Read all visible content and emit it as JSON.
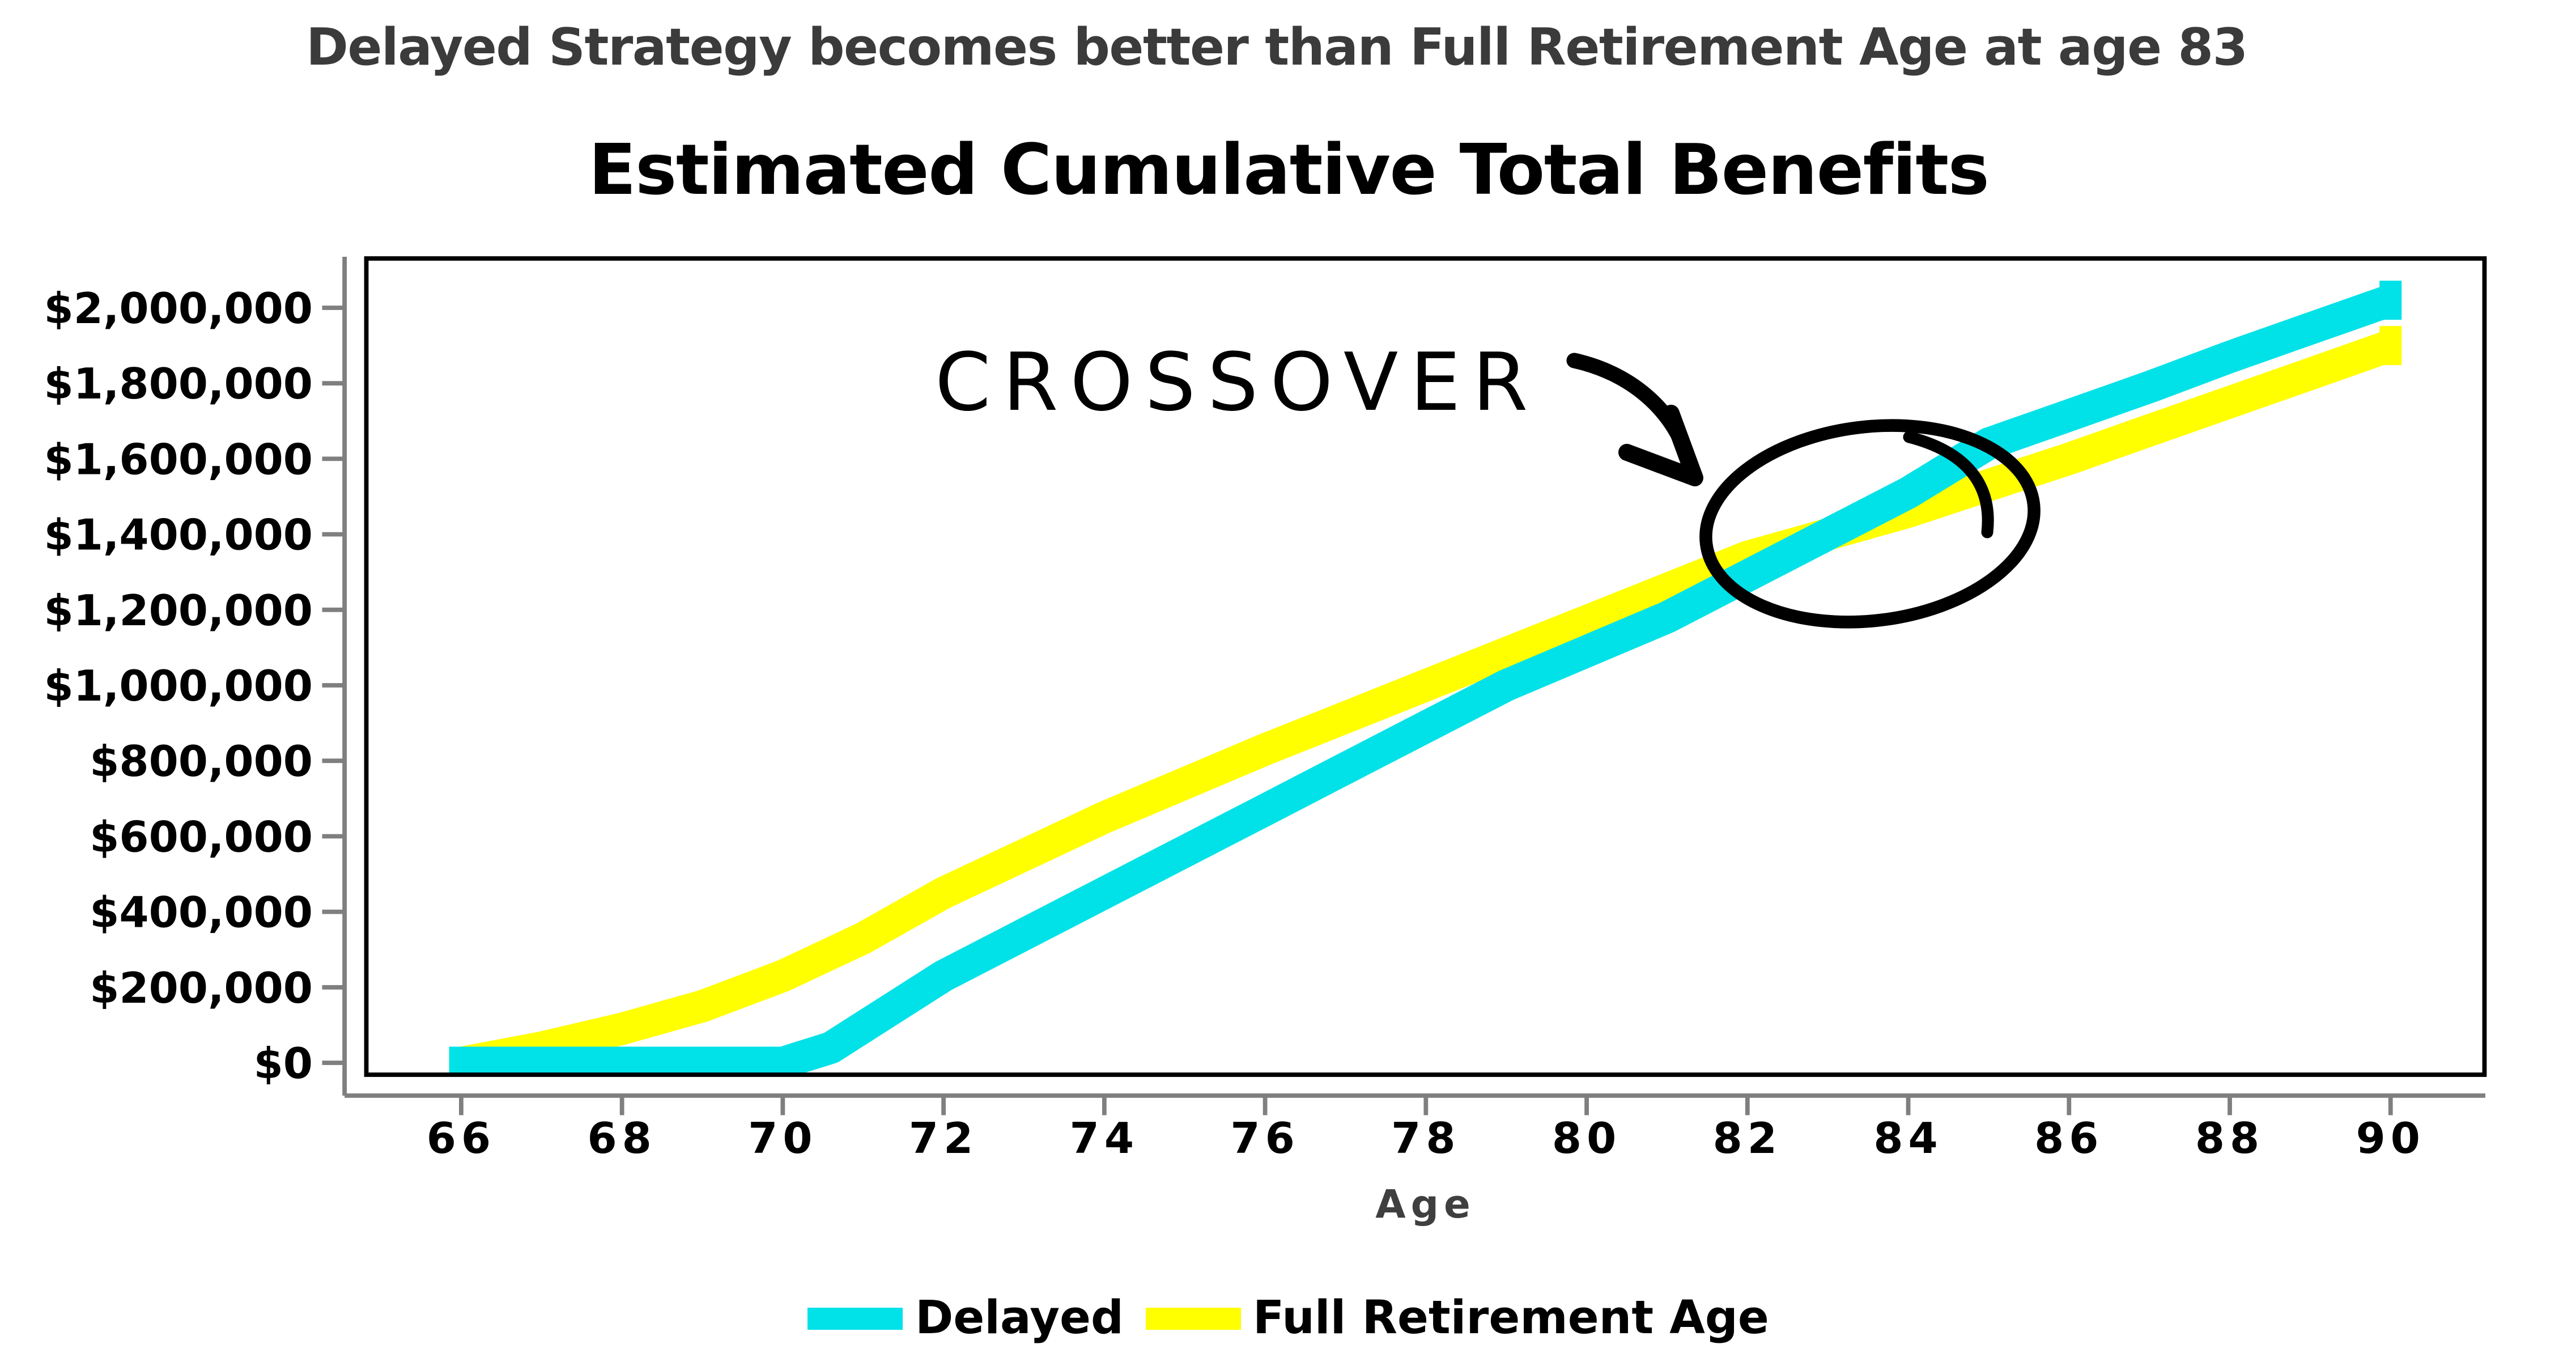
{
  "header": {
    "subtitle": "Delayed Strategy becomes better than Full Retirement Age at age 83",
    "title": "Estimated Cumulative Total Benefits"
  },
  "annotation": {
    "label": "CROSSOVER"
  },
  "legend": {
    "items": [
      {
        "label": "Delayed",
        "color": "#00E2E8"
      },
      {
        "label": "Full Retirement Age",
        "color": "#FFFF00"
      }
    ]
  },
  "chart_data": {
    "type": "line",
    "title": "Estimated Cumulative Total Benefits",
    "subtitle": "Delayed Strategy becomes better than Full Retirement Age at age 83",
    "xlabel": "Age",
    "ylabel": "",
    "xlim": [
      64.8,
      91.2
    ],
    "ylim": [
      0,
      2130000
    ],
    "grid": false,
    "legend_position": "bottom",
    "x_ticks": [
      66,
      68,
      70,
      72,
      74,
      76,
      78,
      80,
      82,
      84,
      86,
      88,
      90
    ],
    "y_ticks": [
      {
        "value": 0,
        "label": "$0"
      },
      {
        "value": 200000,
        "label": "$200,000"
      },
      {
        "value": 400000,
        "label": "$400,000"
      },
      {
        "value": 600000,
        "label": "$600,000"
      },
      {
        "value": 800000,
        "label": "$800,000"
      },
      {
        "value": 1000000,
        "label": "$1,000,000"
      },
      {
        "value": 1200000,
        "label": "$1,200,000"
      },
      {
        "value": 1400000,
        "label": "$1,400,000"
      },
      {
        "value": 1600000,
        "label": "$1,600,000"
      },
      {
        "value": 1800000,
        "label": "$1,800,000"
      },
      {
        "value": 2000000,
        "label": "$2,000,000"
      }
    ],
    "series": [
      {
        "name": "Full Retirement Age",
        "color": "#FFFF00",
        "points": [
          [
            65.85,
            0
          ],
          [
            66,
            0
          ],
          [
            67,
            40000
          ],
          [
            68,
            90000
          ],
          [
            69,
            150000
          ],
          [
            70,
            230000
          ],
          [
            71,
            330000
          ],
          [
            72,
            450000
          ],
          [
            73,
            550000
          ],
          [
            74,
            650000
          ],
          [
            75,
            740000
          ],
          [
            76,
            830000
          ],
          [
            77,
            915000
          ],
          [
            78,
            1000000
          ],
          [
            79,
            1085000
          ],
          [
            80,
            1170000
          ],
          [
            81,
            1255000
          ],
          [
            82,
            1340000
          ],
          [
            83,
            1400000
          ],
          [
            84,
            1460000
          ],
          [
            85,
            1530000
          ],
          [
            86,
            1600000
          ],
          [
            87,
            1675000
          ],
          [
            88,
            1750000
          ],
          [
            89,
            1825000
          ],
          [
            90,
            1900000
          ]
        ]
      },
      {
        "name": "Delayed",
        "color": "#00E2E8",
        "points": [
          [
            65.85,
            0
          ],
          [
            70,
            0
          ],
          [
            70.6,
            40000
          ],
          [
            71.3,
            135000
          ],
          [
            72,
            230000
          ],
          [
            73,
            340000
          ],
          [
            74,
            450000
          ],
          [
            75,
            560000
          ],
          [
            76,
            670000
          ],
          [
            77,
            780000
          ],
          [
            78,
            890000
          ],
          [
            79,
            1000000
          ],
          [
            80,
            1090000
          ],
          [
            81,
            1180000
          ],
          [
            82,
            1290000
          ],
          [
            83,
            1400000
          ],
          [
            84,
            1510000
          ],
          [
            85,
            1640000
          ],
          [
            86,
            1715000
          ],
          [
            87,
            1790000
          ],
          [
            88,
            1870000
          ],
          [
            89,
            1945000
          ],
          [
            90,
            2020000
          ]
        ]
      }
    ],
    "annotation": {
      "text": "CROSSOVER",
      "crossover_age": 83,
      "crossover_value": 1400000
    }
  }
}
